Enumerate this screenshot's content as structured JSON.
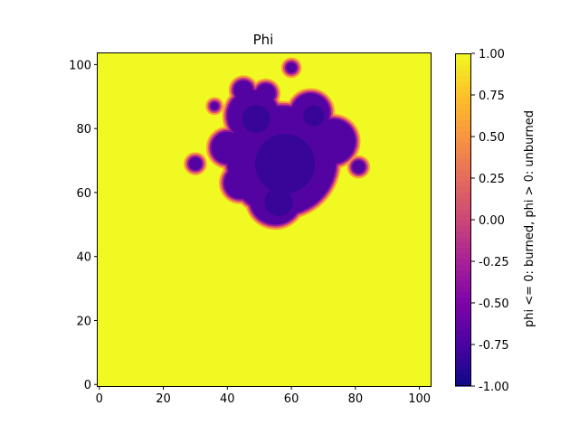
{
  "chart_data": {
    "type": "heatmap",
    "title": "Phi",
    "xlabel": "",
    "ylabel": "",
    "xlim": [
      -0.5,
      103.5
    ],
    "ylim": [
      -0.5,
      103.5
    ],
    "xticks": [
      0,
      20,
      40,
      60,
      80,
      100
    ],
    "yticks": [
      0,
      20,
      40,
      60,
      80,
      100
    ],
    "grid": false,
    "colormap": "plasma",
    "colorbar": {
      "label": "phi <= 0: burned, phi > 0: unburned",
      "range": [
        -1.0,
        1.0
      ],
      "ticks": [
        "-1.00",
        "-0.75",
        "-0.50",
        "-0.25",
        "0.00",
        "0.25",
        "0.50",
        "0.75",
        "1.00"
      ]
    },
    "background_value": 1.0,
    "burned_region": {
      "description_values": "phi ≈ -0.7 inside burned blob, edges ≈ 0, outside = 1.0",
      "interior_value": -0.7,
      "blobs": [
        {
          "cx": 57,
          "cy": 70,
          "r": 17
        },
        {
          "cx": 55,
          "cy": 58,
          "r": 8
        },
        {
          "cx": 48,
          "cy": 84,
          "r": 8
        },
        {
          "cx": 66,
          "cy": 85,
          "r": 6
        },
        {
          "cx": 40,
          "cy": 74,
          "r": 5
        },
        {
          "cx": 73,
          "cy": 76,
          "r": 7
        },
        {
          "cx": 45,
          "cy": 92,
          "r": 3
        },
        {
          "cx": 52,
          "cy": 91,
          "r": 3
        },
        {
          "cx": 60,
          "cy": 63,
          "r": 8
        },
        {
          "cx": 44,
          "cy": 63,
          "r": 5
        },
        {
          "cx": 67,
          "cy": 67,
          "r": 6
        }
      ],
      "spots": [
        {
          "cx": 30,
          "cy": 69,
          "r": 2
        },
        {
          "cx": 81,
          "cy": 68,
          "r": 2
        },
        {
          "cx": 60,
          "cy": 99,
          "r": 1.6
        },
        {
          "cx": 36,
          "cy": 87,
          "r": 1.2
        }
      ]
    }
  }
}
